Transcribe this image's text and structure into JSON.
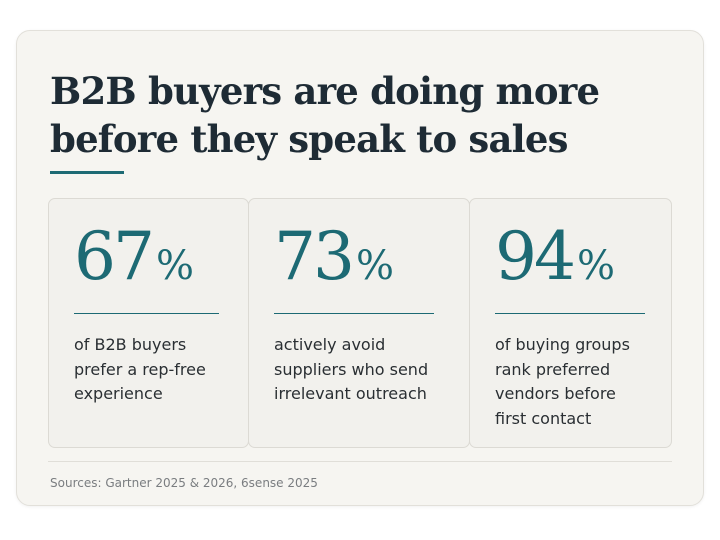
{
  "headline": {
    "line1": "B2B buyers are doing more",
    "line2": "before they speak to sales"
  },
  "colors": {
    "accent": "#1d6a74",
    "headline": "#1e2b35",
    "card_background": "#f6f5f1",
    "stat_background": "#f2f1ed"
  },
  "stats": [
    {
      "value": "67",
      "unit": "%",
      "lines": [
        "of B2B buyers",
        "prefer a rep-free",
        "experience"
      ]
    },
    {
      "value": "73",
      "unit": "%",
      "lines": [
        "actively avoid",
        "suppliers who send",
        "irrelevant outreach"
      ]
    },
    {
      "value": "94",
      "unit": "%",
      "lines": [
        "of buying groups",
        "rank preferred",
        "vendors before",
        "first contact"
      ]
    }
  ],
  "footer": {
    "sources": "Sources: Gartner 2025 & 2026, 6sense 2025"
  }
}
